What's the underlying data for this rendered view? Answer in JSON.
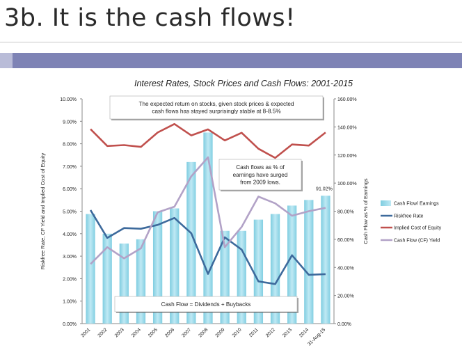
{
  "slide": {
    "title": "3b. It is the cash flows!"
  },
  "chart_data": {
    "type": "bar",
    "title": "Interest Rates, Stock Prices and Cash Flows: 2001-2015",
    "categories": [
      "2001",
      "2002",
      "2003",
      "2004",
      "2005",
      "2006",
      "2007",
      "2008",
      "2009",
      "2010",
      "2011",
      "2012",
      "2013",
      "2014",
      "31-Aug-15"
    ],
    "ylabel_left": "Riskfree Rate, CF Yield and Implied Cost of Equity",
    "ylabel_right": "Cash Flow as % of Earnings",
    "ylim_left": [
      0,
      10
    ],
    "ylim_right": [
      0,
      160
    ],
    "left_ticks": [
      "0.00%",
      "1.00%",
      "2.00%",
      "3.00%",
      "4.00%",
      "5.00%",
      "6.00%",
      "7.00%",
      "8.00%",
      "9.00%",
      "10.00%"
    ],
    "right_ticks": [
      "0.00%",
      "20.00%",
      "40.00%",
      "60.00%",
      "80.00%",
      "100.00%",
      "120.00%",
      "140.00%",
      "160.00%"
    ],
    "series": [
      {
        "name": "Cash Flow/ Earnings",
        "type": "bar",
        "axis": "right",
        "color": "#9edcec",
        "values": [
          78,
          64,
          57,
          60,
          80,
          82,
          115,
          136,
          66,
          66,
          74,
          78,
          84,
          88,
          91.02
        ]
      },
      {
        "name": "Riskfree Rate",
        "type": "line",
        "axis": "left",
        "color": "#3d6a9c",
        "values": [
          5.05,
          3.81,
          4.25,
          4.22,
          4.39,
          4.7,
          4.02,
          2.21,
          3.84,
          3.29,
          1.88,
          1.76,
          3.04,
          2.17,
          2.2
        ]
      },
      {
        "name": "Implied Cost of Equity",
        "type": "line",
        "axis": "left",
        "color": "#c0504d",
        "values": [
          8.65,
          7.9,
          7.94,
          7.86,
          8.5,
          8.88,
          8.37,
          8.64,
          8.15,
          8.49,
          7.78,
          7.37,
          7.97,
          7.92,
          8.5
        ]
      },
      {
        "name": "Cash Flow (CF) Yield",
        "type": "line",
        "axis": "left",
        "color": "#b2a2c7",
        "values": [
          2.65,
          3.4,
          2.9,
          3.35,
          4.95,
          5.2,
          6.55,
          7.4,
          3.4,
          4.3,
          5.65,
          5.35,
          4.8,
          5.0,
          5.15
        ]
      }
    ],
    "data_labels": [
      "91.02%"
    ],
    "annotations": [
      {
        "text": [
          "The expected return on stocks, given stock prices & expected",
          "cash flows has stayed surprisingly stable at 8-8.5%"
        ]
      },
      {
        "text": [
          "Cash flows as % of",
          "earnings have surged",
          "from 2009 lows."
        ]
      },
      {
        "text": [
          "Cash Flow = Dividends + Buybacks"
        ]
      }
    ],
    "legend_position": "right",
    "grid": false
  }
}
